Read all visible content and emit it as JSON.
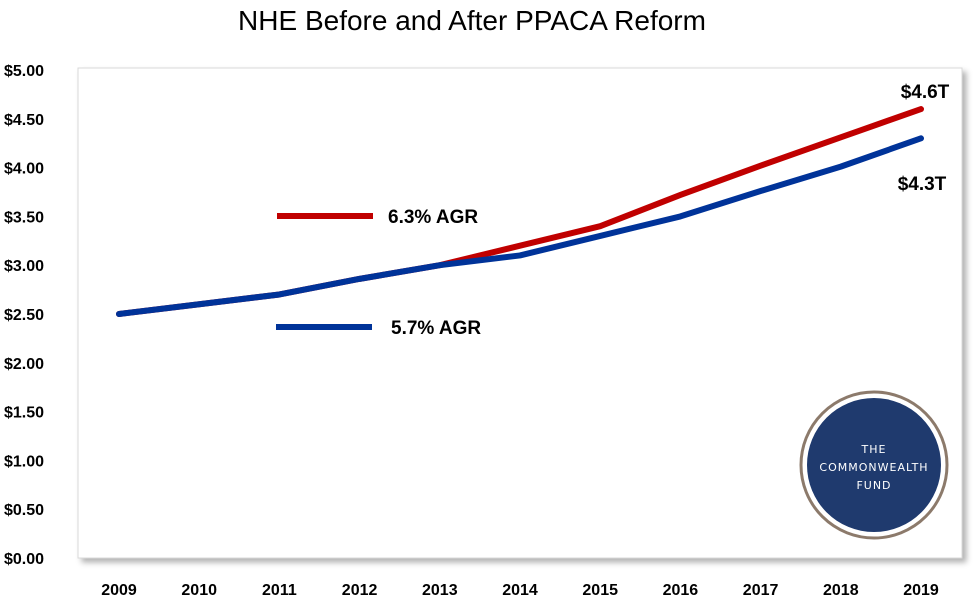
{
  "chart_data": {
    "type": "line",
    "title": "NHE Before and After PPACA Reform",
    "xlabel": "",
    "ylabel": "",
    "categories": [
      "2009",
      "2010",
      "2011",
      "2012",
      "2013",
      "2014",
      "2015",
      "2016",
      "2017",
      "2018",
      "2019"
    ],
    "ylim": [
      0,
      5
    ],
    "y_ticks": [
      "$0.00",
      "$0.50",
      "$1.00",
      "$1.50",
      "$2.00",
      "$2.50",
      "$3.00",
      "$3.50",
      "$4.00",
      "$4.50",
      "$5.00"
    ],
    "grid": false,
    "series": [
      {
        "name": "6.3% AGR",
        "color": "#c00000",
        "values": [
          2.5,
          2.6,
          2.7,
          2.86,
          3.0,
          3.2,
          3.4,
          3.72,
          4.02,
          4.31,
          4.6
        ],
        "end_label": "$4.6T"
      },
      {
        "name": "5.7% AGR",
        "color": "#003399",
        "values": [
          2.5,
          2.6,
          2.7,
          2.86,
          3.0,
          3.1,
          3.3,
          3.5,
          3.76,
          4.01,
          4.3
        ],
        "end_label": "$4.3T"
      }
    ],
    "logo": {
      "lines": [
        "THE",
        "COMMONWEALTH",
        "FUND"
      ],
      "fill": "#1f3a6e",
      "ring": "#8c7a6b"
    }
  }
}
